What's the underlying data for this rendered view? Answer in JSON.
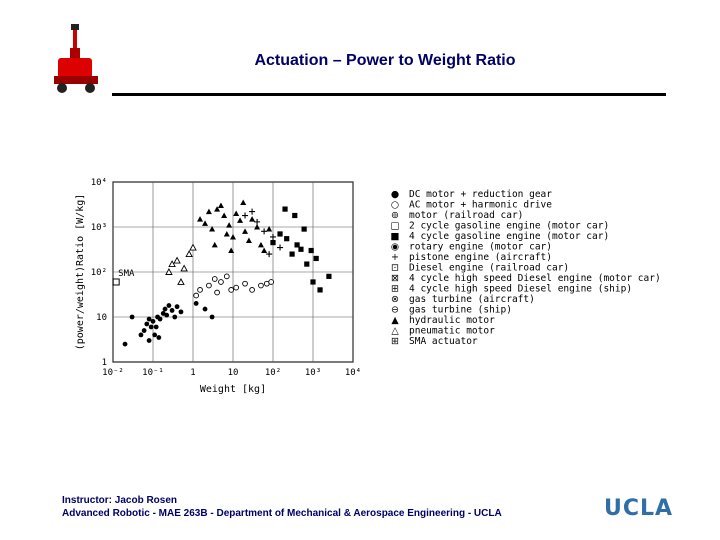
{
  "slide": {
    "title": "Actuation – Power to Weight Ratio",
    "footer_line1": "Instructor: Jacob Rosen",
    "footer_line2": "Advanced Robotic - MAE 263B - Department of Mechanical & Aerospace Engineering - UCLA",
    "logo_text": "UCLA",
    "logo_color": "#2f6ea7",
    "title_color": "#000066",
    "robot_icon": "robot-arm-icon"
  },
  "chart_data": {
    "type": "scatter",
    "title": "",
    "xlabel": "Weight  [kg]",
    "ylabel": "(power/weight)Ratio [W/kg]",
    "xscale": "log",
    "yscale": "log",
    "xlim": [
      0.01,
      10000
    ],
    "ylim": [
      1,
      10000
    ],
    "x_ticks": [
      {
        "value": 0.01,
        "label": "10⁻²"
      },
      {
        "value": 0.1,
        "label": "10⁻¹"
      },
      {
        "value": 1,
        "label": "1"
      },
      {
        "value": 10,
        "label": "10"
      },
      {
        "value": 100,
        "label": "10²"
      },
      {
        "value": 1000,
        "label": "10³"
      },
      {
        "value": 10000,
        "label": "10⁴"
      }
    ],
    "y_ticks": [
      {
        "value": 1,
        "label": "1"
      },
      {
        "value": 10,
        "label": "10"
      },
      {
        "value": 100,
        "label": "10²"
      },
      {
        "value": 1000,
        "label": "10³"
      },
      {
        "value": 10000,
        "label": "10⁴"
      }
    ],
    "grid": true,
    "legend_position": "right",
    "annotations": [
      {
        "text": "SMA",
        "x": 0.012,
        "y": 60
      }
    ],
    "legend": [
      {
        "symbol": "●",
        "label": "DC motor + reduction gear"
      },
      {
        "symbol": "○",
        "label": "AC motor + harmonic drive"
      },
      {
        "symbol": "⊚",
        "label": "motor (railroad car)"
      },
      {
        "symbol": "□",
        "label": "2 cycle gasoline engine (motor car)"
      },
      {
        "symbol": "■",
        "label": "4 cycle gasoline engine (motor car)"
      },
      {
        "symbol": "◉",
        "label": "rotary engine  (motor car)"
      },
      {
        "symbol": "+",
        "label": "pistone engine (aircraft)"
      },
      {
        "symbol": "⊡",
        "label": "Diesel engine  (railroad car)"
      },
      {
        "symbol": "⊠",
        "label": "4 cycle high speed Diesel engine (motor car)"
      },
      {
        "symbol": "⊞",
        "label": "4 cycle high speed Diesel engine (ship)"
      },
      {
        "symbol": "⊗",
        "label": "gas turbine  (aircraft)"
      },
      {
        "symbol": "⊖",
        "label": "gas turbine  (ship)"
      },
      {
        "symbol": "▲",
        "label": "hydraulic motor"
      },
      {
        "symbol": "△",
        "label": "pneumatic motor"
      },
      {
        "symbol": "⊞",
        "label": "SMA actuator"
      }
    ],
    "series": [
      {
        "marker": "dot",
        "points": [
          [
            0.02,
            2.5
          ],
          [
            0.05,
            4
          ],
          [
            0.06,
            5
          ],
          [
            0.07,
            7
          ],
          [
            0.08,
            9
          ],
          [
            0.09,
            6
          ],
          [
            0.1,
            8
          ],
          [
            0.12,
            6
          ],
          [
            0.11,
            4
          ],
          [
            0.13,
            10
          ],
          [
            0.15,
            9
          ],
          [
            0.18,
            12
          ],
          [
            0.2,
            15
          ],
          [
            0.22,
            11
          ],
          [
            0.25,
            18
          ],
          [
            0.3,
            14
          ],
          [
            0.35,
            10
          ],
          [
            0.4,
            17
          ],
          [
            0.5,
            13
          ],
          [
            1.2,
            20
          ],
          [
            2,
            15
          ],
          [
            3,
            10
          ],
          [
            0.03,
            10
          ],
          [
            0.08,
            3
          ],
          [
            0.14,
            3.5
          ]
        ]
      },
      {
        "marker": "circle",
        "points": [
          [
            1.5,
            40
          ],
          [
            2.5,
            50
          ],
          [
            3.5,
            70
          ],
          [
            5,
            60
          ],
          [
            7,
            80
          ],
          [
            12,
            45
          ],
          [
            20,
            55
          ],
          [
            30,
            40
          ],
          [
            50,
            50
          ],
          [
            70,
            55
          ],
          [
            90,
            60
          ],
          [
            9,
            40
          ],
          [
            4,
            35
          ],
          [
            1.2,
            30
          ]
        ]
      },
      {
        "marker": "square",
        "points": [
          [
            150,
            700
          ],
          [
            220,
            550
          ],
          [
            300,
            250
          ],
          [
            400,
            400
          ],
          [
            500,
            320
          ],
          [
            700,
            150
          ],
          [
            1000,
            60
          ],
          [
            1500,
            40
          ],
          [
            2500,
            80
          ],
          [
            200,
            2500
          ],
          [
            350,
            1800
          ],
          [
            600,
            900
          ],
          [
            900,
            300
          ],
          [
            1200,
            200
          ],
          [
            100,
            450
          ]
        ]
      },
      {
        "marker": "filled-triangle",
        "points": [
          [
            1.5,
            1500
          ],
          [
            2,
            1200
          ],
          [
            3,
            900
          ],
          [
            4,
            2500
          ],
          [
            5,
            3000
          ],
          [
            6,
            1800
          ],
          [
            7,
            700
          ],
          [
            8,
            1100
          ],
          [
            10,
            600
          ],
          [
            12,
            2000
          ],
          [
            15,
            1400
          ],
          [
            20,
            800
          ],
          [
            25,
            500
          ],
          [
            30,
            1500
          ],
          [
            40,
            1000
          ],
          [
            50,
            400
          ],
          [
            60,
            300
          ],
          [
            80,
            900
          ],
          [
            2.5,
            2200
          ],
          [
            3.5,
            400
          ],
          [
            9,
            300
          ],
          [
            18,
            3500
          ]
        ]
      },
      {
        "marker": "triangle",
        "points": [
          [
            0.25,
            100
          ],
          [
            0.3,
            150
          ],
          [
            0.4,
            180
          ],
          [
            0.6,
            120
          ],
          [
            0.8,
            250
          ],
          [
            1,
            350
          ],
          [
            0.5,
            60
          ]
        ]
      },
      {
        "marker": "plus",
        "points": [
          [
            20,
            1800
          ],
          [
            30,
            2200
          ],
          [
            40,
            1300
          ],
          [
            60,
            800
          ],
          [
            100,
            600
          ],
          [
            150,
            350
          ],
          [
            80,
            250
          ]
        ]
      },
      {
        "marker": "sma",
        "points": [
          [
            0.012,
            60
          ]
        ]
      }
    ]
  }
}
